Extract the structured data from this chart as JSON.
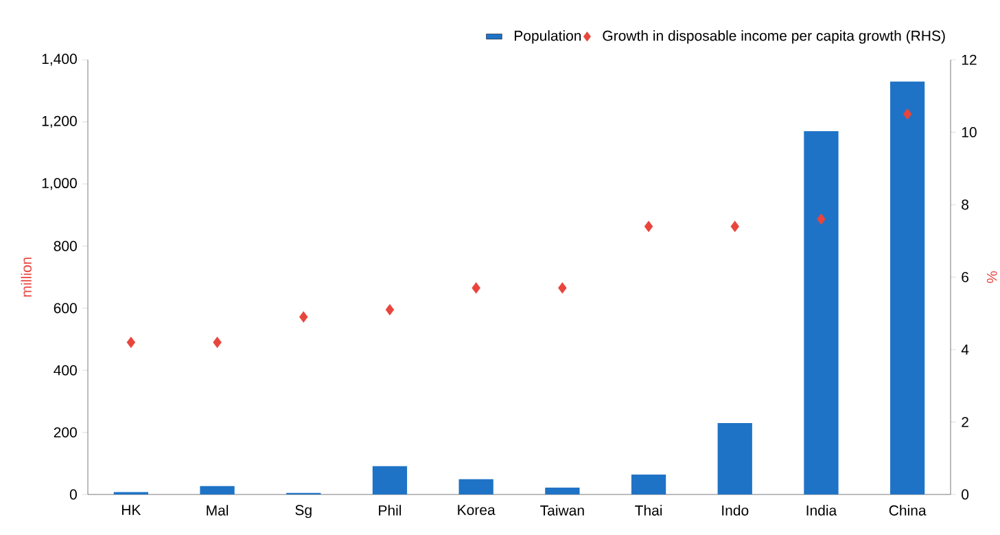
{
  "chart_data": {
    "type": "bar",
    "categories": [
      "HK",
      "Mal",
      "Sg",
      "Phil",
      "Korea",
      "Taiwan",
      "Thai",
      "Indo",
      "India",
      "China"
    ],
    "series": [
      {
        "name": "Population",
        "color": "#1f73c6",
        "values": [
          8,
          27,
          5,
          91,
          49,
          22,
          64,
          230,
          1170,
          1330
        ]
      },
      {
        "name": "Growth in disposable income per capita growth (RHS)",
        "type": "scatter",
        "axis": "y2",
        "color": "#e8453c",
        "values": [
          4.2,
          4.2,
          4.9,
          5.1,
          5.7,
          5.7,
          7.4,
          7.4,
          7.6,
          10.5
        ]
      }
    ],
    "ylabel": "million",
    "y2label": "%",
    "ylim": [
      0,
      1400
    ],
    "yticks": [
      0,
      200,
      400,
      600,
      800,
      {
        "value": 1000,
        "label": "1,000"
      },
      {
        "value": 1200,
        "label": "1,200"
      },
      {
        "value": 1400,
        "label": "1,400"
      }
    ],
    "y2lim": [
      0,
      12
    ],
    "y2ticks": [
      0,
      2,
      4,
      6,
      8,
      10,
      12
    ],
    "marker": "diamond",
    "grid": false,
    "legend": "top right"
  }
}
